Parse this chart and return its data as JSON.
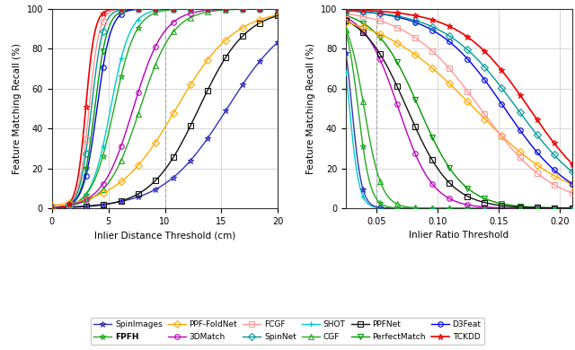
{
  "ylabel": "Feature Matching Recall (%)",
  "xlabel1": "Inlier Distance Threshold (cm)",
  "xlabel2": "Inlier Ratio Threshold",
  "dashed_line1": 10,
  "dashed_line2": 0.05,
  "background": "#ffffff",
  "grid_color": "#bbbbbb",
  "method_styles": {
    "SpinImages": {
      "color": "#3333bb",
      "marker": "*",
      "ms": 5,
      "lw": 1.0,
      "mfc": "none",
      "mew": 0.8
    },
    "SHOT": {
      "color": "#00cccc",
      "marker": "+",
      "ms": 5,
      "lw": 1.0,
      "mfc": "#00cccc",
      "mew": 1.0
    },
    "FPFH": {
      "color": "#22aa22",
      "marker": "*",
      "ms": 5,
      "lw": 1.0,
      "mfc": "none",
      "mew": 0.8
    },
    "CGF": {
      "color": "#22aa22",
      "marker": "^",
      "ms": 4,
      "lw": 1.0,
      "mfc": "none",
      "mew": 0.8
    },
    "PPF-FoldNet": {
      "color": "#ffaa00",
      "marker": "D",
      "ms": 4,
      "lw": 1.0,
      "mfc": "none",
      "mew": 0.8
    },
    "PPFNet": {
      "color": "#111111",
      "marker": "s",
      "ms": 4,
      "lw": 1.0,
      "mfc": "none",
      "mew": 0.8
    },
    "3DMatch": {
      "color": "#bb00bb",
      "marker": "o",
      "ms": 4,
      "lw": 1.0,
      "mfc": "none",
      "mew": 0.8
    },
    "PerfectMatch": {
      "color": "#009900",
      "marker": "v",
      "ms": 4,
      "lw": 1.0,
      "mfc": "none",
      "mew": 0.8
    },
    "FCGF": {
      "color": "#ff9999",
      "marker": "s",
      "ms": 4,
      "lw": 1.0,
      "mfc": "none",
      "mew": 0.8
    },
    "D3Feat": {
      "color": "#0000ee",
      "marker": "o",
      "ms": 4,
      "lw": 1.0,
      "mfc": "none",
      "mew": 0.8
    },
    "SpinNet": {
      "color": "#009999",
      "marker": "D",
      "ms": 4,
      "lw": 1.0,
      "mfc": "none",
      "mew": 0.8
    },
    "TCKDD": {
      "color": "#ee0000",
      "marker": "*",
      "ms": 5,
      "lw": 1.2,
      "mfc": "none",
      "mew": 0.8
    }
  },
  "legend_order": [
    [
      "SpinImages",
      "SpinImages"
    ],
    [
      "FPFH",
      "FPFH"
    ],
    [
      "PPF-FoldNet",
      "PPF-FoldNet"
    ],
    [
      "3DMatch",
      "3DMatch"
    ],
    [
      "FCGF",
      "FCGF"
    ],
    [
      "SpinNet",
      "SpinNet"
    ],
    [
      "SHOT",
      "SHOT"
    ],
    [
      "CGF",
      "CGF"
    ],
    [
      "PPFNet",
      "PPFNet"
    ],
    [
      "PerfectMatch",
      "PerfectMatch"
    ],
    [
      "D3Feat",
      "D3Feat"
    ],
    [
      "TCKDD",
      "TCKDD"
    ]
  ]
}
